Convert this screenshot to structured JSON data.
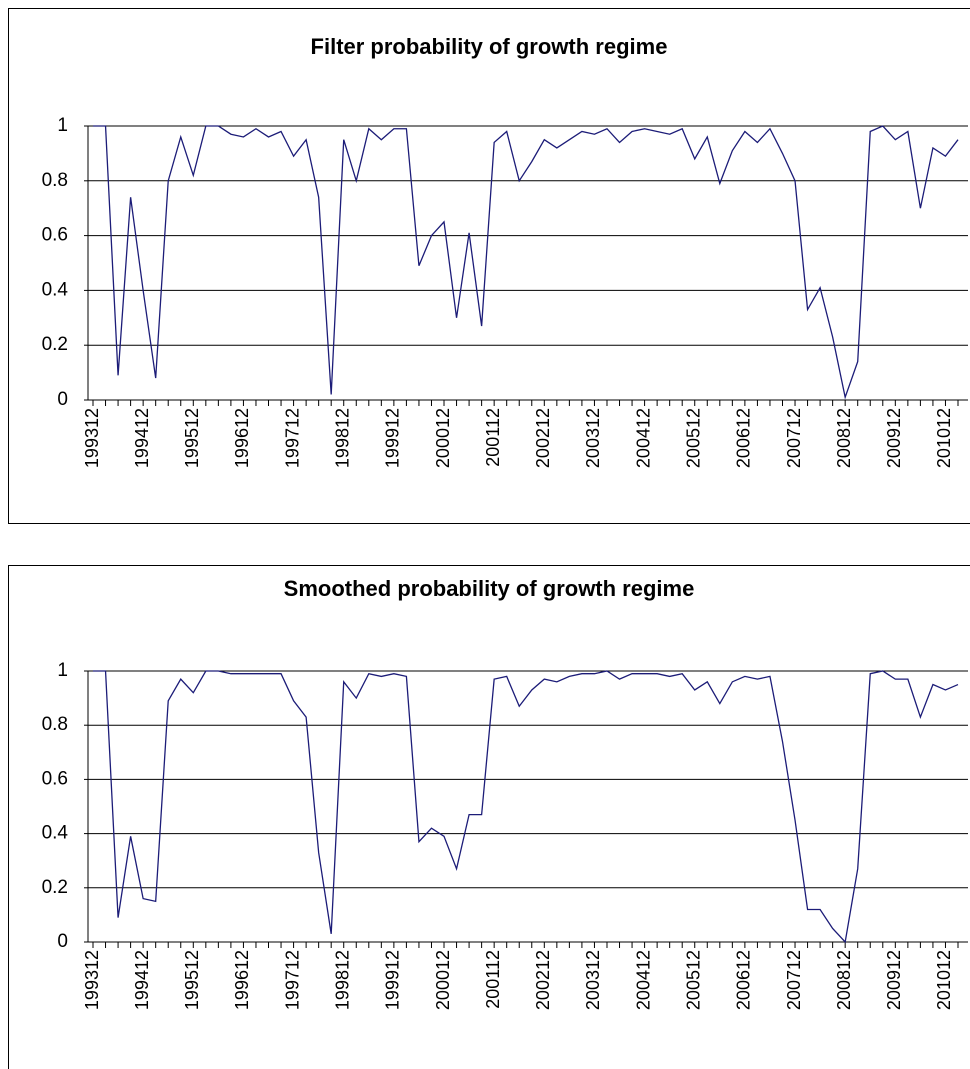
{
  "chart_data": [
    {
      "type": "line",
      "title": "Filter probability of growth regime",
      "categories": [
        "199312",
        null,
        null,
        null,
        "199412",
        null,
        null,
        null,
        "199512",
        null,
        null,
        null,
        "199612",
        null,
        null,
        null,
        "199712",
        null,
        null,
        null,
        "199812",
        null,
        null,
        null,
        "199912",
        null,
        null,
        null,
        "200012",
        null,
        null,
        null,
        "200112",
        null,
        null,
        null,
        "200212",
        null,
        null,
        null,
        "200312",
        null,
        null,
        null,
        "200412",
        null,
        null,
        null,
        "200512",
        null,
        null,
        null,
        "200612",
        null,
        null,
        null,
        "200712",
        null,
        null,
        null,
        "200812",
        null,
        null,
        null,
        "200912",
        null,
        null,
        null,
        "201012",
        null
      ],
      "values": [
        1,
        1,
        0.09,
        0.74,
        0.4,
        0.08,
        0.8,
        0.96,
        0.82,
        1,
        1,
        0.97,
        0.96,
        0.99,
        0.96,
        0.98,
        0.89,
        0.95,
        0.74,
        0.02,
        0.95,
        0.8,
        0.99,
        0.95,
        0.99,
        0.99,
        0.49,
        0.6,
        0.65,
        0.3,
        0.61,
        0.27,
        0.94,
        0.98,
        0.8,
        0.87,
        0.95,
        0.92,
        0.95,
        0.98,
        0.97,
        0.99,
        0.94,
        0.98,
        0.99,
        0.98,
        0.97,
        0.99,
        0.88,
        0.96,
        0.79,
        0.91,
        0.98,
        0.94,
        0.99,
        0.9,
        0.8,
        0.33,
        0.41,
        0.23,
        0.01,
        0.14,
        0.98,
        1,
        0.95,
        0.98,
        0.7,
        0.92,
        0.89,
        0.95
      ],
      "color": "#1c1c78",
      "ylim": [
        0,
        1
      ],
      "yticks": [
        0,
        0.2,
        0.4,
        0.6,
        0.8,
        1
      ],
      "grid": true
    },
    {
      "type": "line",
      "title": "Smoothed probability of growth regime",
      "categories": [
        "199312",
        null,
        null,
        null,
        "199412",
        null,
        null,
        null,
        "199512",
        null,
        null,
        null,
        "199612",
        null,
        null,
        null,
        "199712",
        null,
        null,
        null,
        "199812",
        null,
        null,
        null,
        "199912",
        null,
        null,
        null,
        "200012",
        null,
        null,
        null,
        "200112",
        null,
        null,
        null,
        "200212",
        null,
        null,
        null,
        "200312",
        null,
        null,
        null,
        "200412",
        null,
        null,
        null,
        "200512",
        null,
        null,
        null,
        "200612",
        null,
        null,
        null,
        "200712",
        null,
        null,
        null,
        "200812",
        null,
        null,
        null,
        "200912",
        null,
        null,
        null,
        "201012",
        null
      ],
      "values": [
        1,
        1,
        0.09,
        0.39,
        0.16,
        0.15,
        0.89,
        0.97,
        0.92,
        1,
        1,
        0.99,
        0.99,
        0.99,
        0.99,
        0.99,
        0.89,
        0.83,
        0.33,
        0.03,
        0.96,
        0.9,
        0.99,
        0.98,
        0.99,
        0.98,
        0.37,
        0.42,
        0.39,
        0.27,
        0.47,
        0.47,
        0.97,
        0.98,
        0.87,
        0.93,
        0.97,
        0.96,
        0.98,
        0.99,
        0.99,
        1,
        0.97,
        0.99,
        0.99,
        0.99,
        0.98,
        0.99,
        0.93,
        0.96,
        0.88,
        0.96,
        0.98,
        0.97,
        0.98,
        0.74,
        0.45,
        0.12,
        0.12,
        0.05,
        0,
        0.27,
        0.99,
        1,
        0.97,
        0.97,
        0.83,
        0.95,
        0.93,
        0.95
      ],
      "color": "#1c1c78",
      "ylim": [
        0,
        1
      ],
      "yticks": [
        0,
        0.2,
        0.4,
        0.6,
        0.8,
        1
      ],
      "grid": true
    }
  ]
}
